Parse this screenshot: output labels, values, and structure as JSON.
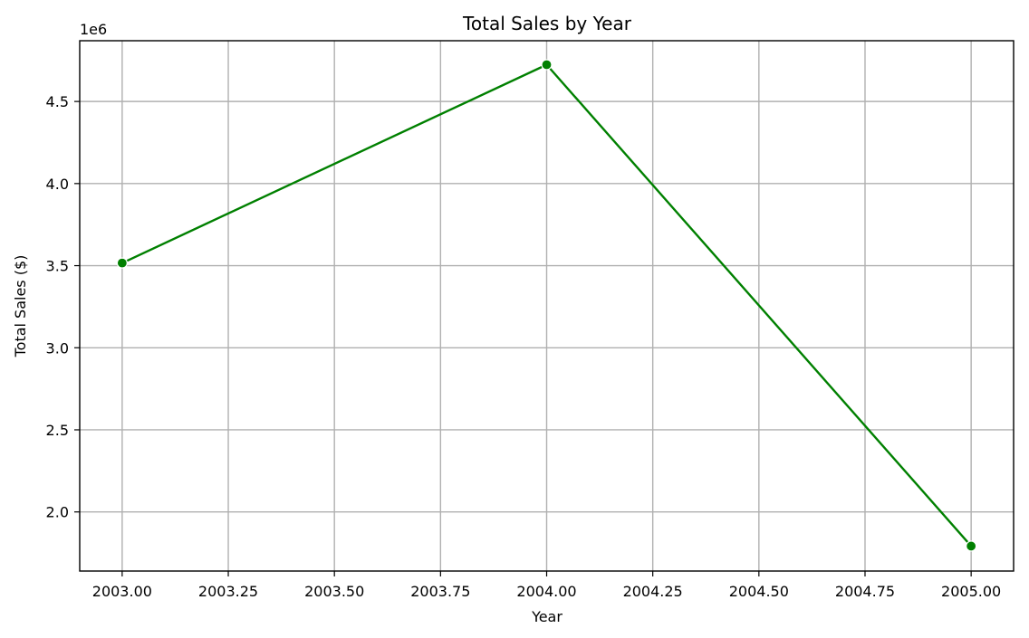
{
  "chart_data": {
    "type": "line",
    "title": "Total Sales by Year",
    "xlabel": "Year",
    "ylabel": "Total Sales ($)",
    "y_offset_label": "1e6",
    "y_multiplier": 1000000,
    "xlim": [
      2002.9,
      2005.1
    ],
    "ylim": [
      1640000,
      4870000
    ],
    "x_ticks": [
      2003.0,
      2003.25,
      2003.5,
      2003.75,
      2004.0,
      2004.25,
      2004.5,
      2004.75,
      2005.0
    ],
    "x_tick_labels": [
      "2003.00",
      "2003.25",
      "2003.50",
      "2003.75",
      "2004.00",
      "2004.25",
      "2004.50",
      "2004.75",
      "2005.00"
    ],
    "y_ticks": [
      2000000,
      2500000,
      3000000,
      3500000,
      4000000,
      4500000
    ],
    "y_tick_labels": [
      "2.0",
      "2.5",
      "3.0",
      "3.5",
      "4.0",
      "4.5"
    ],
    "grid": true,
    "series": [
      {
        "x": [
          2003,
          2004,
          2005
        ],
        "y": [
          3516000,
          4724000,
          1792000
        ],
        "color": "#008000",
        "marker": "circle"
      }
    ]
  }
}
